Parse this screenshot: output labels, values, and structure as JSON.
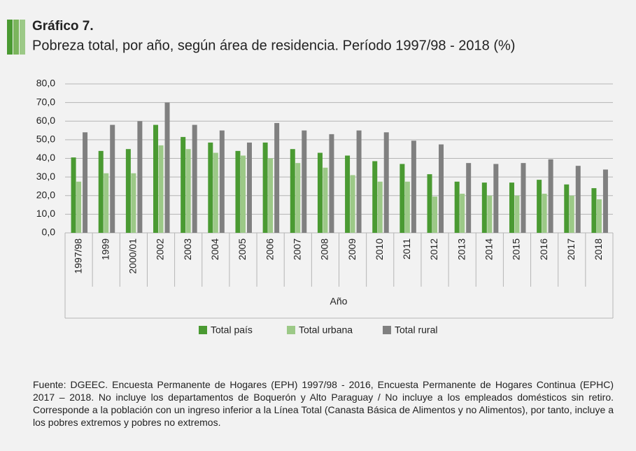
{
  "chart_data": {
    "type": "bar",
    "title": "Gráfico 7.",
    "subtitle": "Pobreza total, por año, según  área de residencia. Período 1997/98 - 2018 (%)",
    "x_label": "Año",
    "categories": [
      "1997/98",
      "1999",
      "2000/01",
      "2002",
      "2003",
      "2004",
      "2005",
      "2006",
      "2007",
      "2008",
      "2009",
      "2010",
      "2011",
      "2012",
      "2013",
      "2014",
      "2015",
      "2016",
      "2017",
      "2018"
    ],
    "series": [
      {
        "name": "Total país",
        "color": "#4a9a32",
        "values": [
          40.5,
          44,
          45,
          58,
          51.5,
          48.5,
          44,
          48.5,
          45,
          43,
          41.5,
          38.5,
          37,
          31.5,
          27.5,
          27,
          27,
          28.5,
          26,
          24
        ]
      },
      {
        "name": "Total urbana",
        "color": "#9cc987",
        "values": [
          27.5,
          32,
          32,
          47,
          45,
          43,
          41.5,
          40,
          37.5,
          35,
          31,
          27.5,
          27.5,
          19.5,
          21,
          20,
          20,
          21,
          20,
          18
        ]
      },
      {
        "name": "Total rural",
        "color": "#808080",
        "values": [
          54,
          58,
          60,
          70,
          58,
          55,
          48.5,
          59,
          55,
          53,
          55,
          54,
          49.5,
          47.5,
          37.5,
          37,
          37.5,
          39.5,
          36,
          34
        ]
      }
    ],
    "ylim": [
      0,
      80
    ],
    "yticks": [
      {
        "value": 0,
        "label": "0,0"
      },
      {
        "value": 10,
        "label": "10,0"
      },
      {
        "value": 20,
        "label": "20,0"
      },
      {
        "value": 30,
        "label": "30,0"
      },
      {
        "value": 40,
        "label": "40,0"
      },
      {
        "value": 50,
        "label": "50,0"
      },
      {
        "value": 60,
        "label": "60,0"
      },
      {
        "value": 70,
        "label": "70,0"
      },
      {
        "value": 80,
        "label": "80,0"
      }
    ],
    "grid": true,
    "legend": "bottom",
    "source": "Fuente: DGEEC.  Encuesta Permanente de Hogares (EPH) 1997/98 - 2016, Encuesta Permanente de Hogares Continua (EPHC) 2017 – 2018. No incluye los departamentos de Boquerón y Alto Paraguay / No incluye a los empleados domésticos sin retiro. Corresponde a la población con un ingreso inferior a la Línea Total (Canasta Básica de Alimentos y no Alimentos), por tanto, incluye a los pobres extremos y pobres no extremos."
  }
}
